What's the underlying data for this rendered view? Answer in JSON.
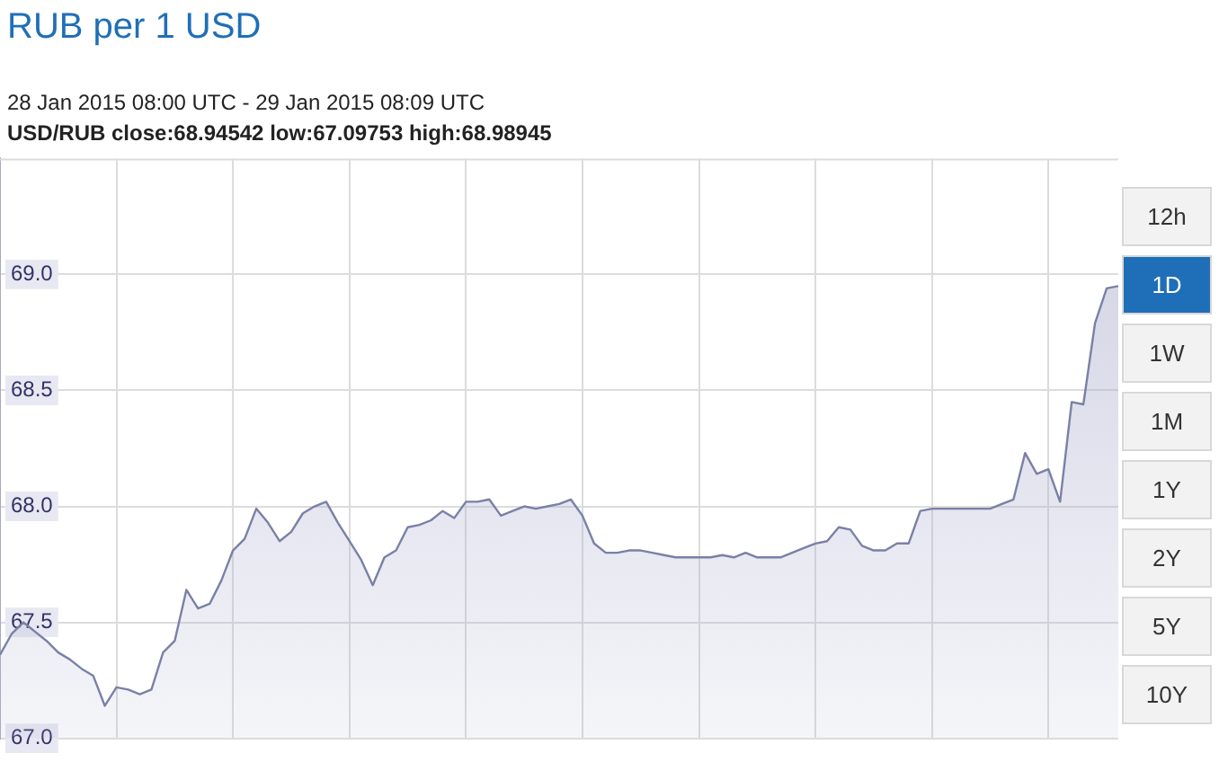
{
  "chart_data": {
    "type": "area",
    "title": "RUB per 1 USD",
    "subtitle": "28 Jan 2015 08:00 UTC - 29 Jan 2015 08:09 UTC",
    "annotations": [
      "USD/RUB close:68.94542 low:67.09753 high:68.98945",
      "12h",
      "1D",
      "1W",
      "1M",
      "1Y",
      "2Y",
      "5Y",
      "10Y"
    ],
    "categories": [
      null,
      null,
      null,
      null,
      null,
      null,
      null,
      null,
      null,
      null,
      null,
      null,
      null,
      null,
      null,
      null,
      null,
      null,
      null,
      null,
      null,
      null,
      null,
      null,
      null,
      null,
      null,
      null,
      null,
      null,
      null,
      null,
      null,
      null,
      null,
      null,
      null,
      null,
      null,
      null,
      null,
      null,
      null,
      null,
      null,
      null,
      null,
      null,
      null,
      null,
      null,
      null,
      null,
      null,
      null,
      null,
      null,
      null,
      null,
      null,
      null,
      null,
      null,
      null,
      null,
      null,
      null,
      null,
      null,
      null,
      null,
      null,
      null,
      null,
      null,
      null,
      null,
      null,
      null,
      null,
      null,
      null,
      null,
      null,
      null,
      null,
      null,
      null,
      null,
      null,
      null,
      null,
      null,
      null,
      null,
      null,
      null
    ],
    "values": [
      67.36,
      67.45,
      67.5,
      67.46,
      67.42,
      67.37,
      67.34,
      67.3,
      67.27,
      67.14,
      67.22,
      67.21,
      67.19,
      67.21,
      67.37,
      67.42,
      67.64,
      67.56,
      67.58,
      67.68,
      67.81,
      67.86,
      67.99,
      67.93,
      67.85,
      67.89,
      67.97,
      68.0,
      68.02,
      67.93,
      67.85,
      67.77,
      67.66,
      67.78,
      67.81,
      67.91,
      67.92,
      67.94,
      67.98,
      67.95,
      68.02,
      68.02,
      68.03,
      67.96,
      67.98,
      68.0,
      67.99,
      68.0,
      68.01,
      68.03,
      67.96,
      67.84,
      67.8,
      67.8,
      67.81,
      67.81,
      67.8,
      67.79,
      67.78,
      67.78,
      67.78,
      67.78,
      67.79,
      67.78,
      67.8,
      67.78,
      67.78,
      67.78,
      67.8,
      67.82,
      67.84,
      67.85,
      67.91,
      67.9,
      67.83,
      67.81,
      67.81,
      67.84,
      67.84,
      67.98,
      67.99,
      67.99,
      67.99,
      67.99,
      67.99,
      67.99,
      68.01,
      68.03,
      68.23,
      68.14,
      68.16,
      68.02,
      68.45,
      68.44,
      68.79,
      68.94,
      68.95
    ],
    "color": "#7a80a6",
    "ylim": [
      67.0,
      69.5
    ],
    "yticks": [
      {
        "value": 67,
        "label": "67.0"
      },
      67.5,
      {
        "value": 68,
        "label": "68.0"
      },
      68.5,
      {
        "value": 69,
        "label": "69.0"
      }
    ],
    "grid": true,
    "legend": false,
    "marker": "none",
    "tick_labels": "y"
  }
}
